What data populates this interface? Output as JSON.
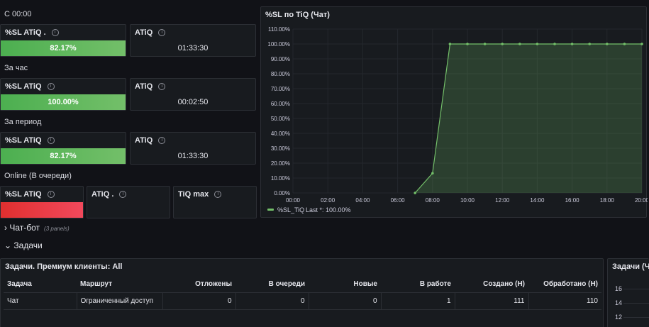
{
  "sections": {
    "since_midnight": "С 00:00",
    "per_hour": "За час",
    "per_period": "За период",
    "online": "Online (В очереди)"
  },
  "stats": {
    "midnight_sl": {
      "title": "%SL ATiQ .",
      "value": "82.17%"
    },
    "midnight_atiq": {
      "title": "ATiQ",
      "value": "01:33:30"
    },
    "hour_sl": {
      "title": "%SL ATiQ",
      "value": "100.00%"
    },
    "hour_atiq": {
      "title": "ATiQ",
      "value": "00:02:50"
    },
    "period_sl": {
      "title": "%SL ATiQ",
      "value": "82.17%"
    },
    "period_atiq": {
      "title": "ATiQ",
      "value": "01:33:30"
    },
    "online_sl": {
      "title": "%SL ATiQ"
    },
    "online_atiq": {
      "title": "ATiQ ."
    },
    "online_tiqmax": {
      "title": "TiQ max"
    }
  },
  "graph_panel": {
    "title": "%SL по TiQ (Чат)"
  },
  "chart_data": {
    "type": "area",
    "title": "%SL по TiQ (Чат)",
    "y_ticks": [
      "0.00%",
      "10.00%",
      "20.00%",
      "30.00%",
      "40.00%",
      "50.00%",
      "60.00%",
      "70.00%",
      "80.00%",
      "90.00%",
      "100.00%",
      "110.00%"
    ],
    "x_ticks": [
      "00:00",
      "02:00",
      "04:00",
      "06:00",
      "08:00",
      "10:00",
      "12:00",
      "14:00",
      "16:00",
      "18:00",
      "20:00"
    ],
    "ylim": [
      0,
      110
    ],
    "xlim_hours": [
      0,
      20
    ],
    "grid": true,
    "series": [
      {
        "name": "%SL_TiQ",
        "color": "#73bf69",
        "x": [
          7,
          8,
          9,
          10,
          11,
          12,
          13,
          14,
          15,
          16,
          17,
          18,
          19,
          20
        ],
        "y": [
          0,
          13.2,
          100,
          100,
          100,
          100,
          100,
          100,
          100,
          100,
          100,
          100,
          100,
          100
        ]
      }
    ],
    "legend": {
      "name": "%SL_TiQ",
      "stat": "Last *: 100.00%",
      "placement": "bottom-left"
    }
  },
  "rows": {
    "chatbot": {
      "label": "Чат-бот",
      "count": "(3 panels)"
    },
    "tasks": {
      "label": "Задачи"
    }
  },
  "table_panel": {
    "title": "Задачи. Премиум клиенты: All",
    "columns": [
      "Задача",
      "Маршрут",
      "Отложены",
      "В очереди",
      "Новые",
      "В работе",
      "Создано (Н)",
      "Обработано (Н)"
    ],
    "rows": [
      [
        "Чат",
        "Ограниченный доступ",
        "0",
        "0",
        "0",
        "1",
        "111",
        "110"
      ]
    ]
  },
  "right_panel": {
    "title": "Задачи (Ча",
    "y_ticks": [
      "16",
      "14",
      "12"
    ]
  },
  "colors": {
    "background": "#111217",
    "panel": "#181b1f",
    "green": "#73bf69",
    "red": "#f2495c"
  }
}
